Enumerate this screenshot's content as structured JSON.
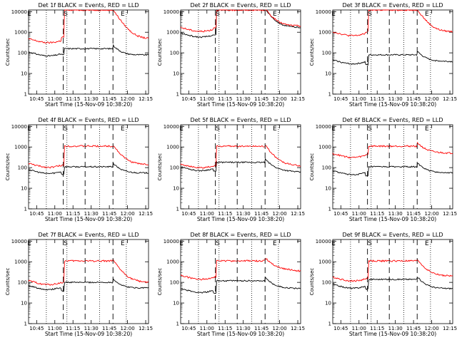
{
  "axes": {
    "xlabel": "Start Time (15-Nov-09 10:38:20)",
    "ylabel": "Counts/sec",
    "x_tick_labels": [
      "10:45",
      "11:00",
      "11:15",
      "11:30",
      "11:45",
      "12:00",
      "12:15"
    ],
    "y_tick_labels": [
      "1",
      "10",
      "100",
      "1000",
      "10000"
    ],
    "y_scale": "log",
    "ylim": [
      1,
      12000
    ],
    "xlim_minutes_after_10_38_20": [
      0,
      99
    ]
  },
  "markers": {
    "dotted_lines_times": [
      "10:53",
      "11:10",
      "11:37",
      "11:59"
    ],
    "dashed_lines_times": [
      "11:07",
      "11:25",
      "11:48"
    ],
    "letters": [
      {
        "text": "E",
        "time": "10:39"
      },
      {
        "text": "S",
        "time": "11:09"
      },
      {
        "text": "E",
        "time": "11:56"
      }
    ]
  },
  "colors": {
    "events": "#000000",
    "lld": "#ff0000",
    "markers": "#000000"
  },
  "chart_data": [
    {
      "type": "line",
      "title": "Det 1f BLACK = Events, RED = LLD",
      "series": [
        {
          "color": "#000000",
          "shape": {
            "pre": 110,
            "dip": 0.75,
            "post": 160,
            "settle": 75,
            "end": 80
          }
        },
        {
          "color": "#ff0000",
          "shape": {
            "pre": 480,
            "dip": 1.2,
            "post": 12000,
            "settle": 520,
            "end": 470
          }
        }
      ]
    },
    {
      "type": "line",
      "title": "Det 2f BLACK = Events, RED = LLD",
      "series": [
        {
          "color": "#000000",
          "shape": {
            "pre": 900,
            "dip": 0.8,
            "post": 12000,
            "settle": 1700,
            "end": 1700
          }
        },
        {
          "color": "#ff0000",
          "shape": {
            "pre": 1700,
            "dip": 1.0,
            "post": 12000,
            "settle": 2100,
            "end": 2000
          }
        }
      ]
    },
    {
      "type": "line",
      "title": "Det 3f BLACK = Events, RED = LLD",
      "series": [
        {
          "color": "#000000",
          "shape": {
            "pre": 45,
            "dip": 0.6,
            "post": 80,
            "settle": 40,
            "end": 38
          }
        },
        {
          "color": "#ff0000",
          "shape": {
            "pre": 1050,
            "dip": 1.0,
            "post": 12000,
            "settle": 1050,
            "end": 1050
          }
        }
      ]
    },
    {
      "type": "line",
      "title": "Det 4f BLACK = Events, RED = LLD",
      "series": [
        {
          "color": "#000000",
          "shape": {
            "pre": 80,
            "dip": 0.6,
            "post": 110,
            "settle": 55,
            "end": 55
          }
        },
        {
          "color": "#ff0000",
          "shape": {
            "pre": 160,
            "dip": 0.8,
            "post": 1100,
            "settle": 150,
            "end": 140
          }
        }
      ]
    },
    {
      "type": "line",
      "title": "Det 5f BLACK = Events, RED = LLD",
      "series": [
        {
          "color": "#000000",
          "shape": {
            "pre": 110,
            "dip": 0.6,
            "post": 180,
            "settle": 80,
            "end": 60
          }
        },
        {
          "color": "#ff0000",
          "shape": {
            "pre": 150,
            "dip": 0.8,
            "post": 1100,
            "settle": 150,
            "end": 120
          }
        }
      ]
    },
    {
      "type": "line",
      "title": "Det 6f BLACK = Events, RED = LLD",
      "series": [
        {
          "color": "#000000",
          "shape": {
            "pre": 70,
            "dip": 0.55,
            "post": 110,
            "settle": 60,
            "end": 55
          }
        },
        {
          "color": "#ff0000",
          "shape": {
            "pre": 480,
            "dip": 0.9,
            "post": 1100,
            "settle": 550,
            "end": 500
          }
        }
      ]
    },
    {
      "type": "line",
      "title": "Det 7f BLACK = Events, RED = LLD",
      "series": [
        {
          "color": "#000000",
          "shape": {
            "pre": 70,
            "dip": 0.55,
            "post": 100,
            "settle": 50,
            "end": 55
          }
        },
        {
          "color": "#ff0000",
          "shape": {
            "pre": 120,
            "dip": 0.8,
            "post": 1100,
            "settle": 110,
            "end": 100
          }
        }
      ]
    },
    {
      "type": "line",
      "title": "Det 8f BLACK = Events, RED = LLD",
      "series": [
        {
          "color": "#000000",
          "shape": {
            "pre": 50,
            "dip": 0.6,
            "post": 120,
            "settle": 55,
            "end": 50
          }
        },
        {
          "color": "#ff0000",
          "shape": {
            "pre": 220,
            "dip": 0.85,
            "post": 1100,
            "settle": 500,
            "end": 350
          }
        }
      ]
    },
    {
      "type": "line",
      "title": "Det 9f BLACK = Events, RED = LLD",
      "series": [
        {
          "color": "#000000",
          "shape": {
            "pre": 80,
            "dip": 0.6,
            "post": 140,
            "settle": 50,
            "end": 50
          }
        },
        {
          "color": "#ff0000",
          "shape": {
            "pre": 180,
            "dip": 0.85,
            "post": 1100,
            "settle": 220,
            "end": 200
          }
        }
      ]
    }
  ]
}
